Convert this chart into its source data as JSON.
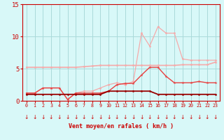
{
  "x": [
    0,
    1,
    2,
    3,
    4,
    5,
    6,
    7,
    8,
    9,
    10,
    11,
    12,
    13,
    14,
    15,
    16,
    17,
    18,
    19,
    20,
    21,
    22,
    23
  ],
  "line_rafales": [
    1.2,
    1.2,
    2.0,
    2.0,
    2.0,
    0.2,
    1.2,
    1.5,
    1.5,
    2.0,
    2.5,
    2.8,
    2.5,
    3.0,
    10.5,
    8.5,
    11.5,
    10.5,
    10.5,
    6.5,
    6.3,
    6.3,
    6.3,
    6.3
  ],
  "line_moy_light": [
    5.2,
    5.2,
    5.2,
    5.2,
    5.2,
    5.2,
    5.2,
    5.3,
    5.4,
    5.5,
    5.5,
    5.5,
    5.5,
    5.5,
    5.5,
    5.5,
    5.5,
    5.5,
    5.5,
    5.6,
    5.6,
    5.6,
    5.6,
    6.0
  ],
  "line_moy_dark": [
    1.2,
    1.2,
    2.0,
    2.0,
    2.0,
    0.2,
    1.2,
    1.2,
    1.2,
    1.2,
    1.5,
    2.5,
    2.7,
    2.7,
    4.0,
    5.2,
    5.2,
    3.8,
    2.8,
    2.8,
    2.8,
    3.0,
    2.8,
    2.8
  ],
  "line_base": [
    1.0,
    1.0,
    1.0,
    1.0,
    1.0,
    1.0,
    1.0,
    1.0,
    1.0,
    1.0,
    1.5,
    1.5,
    1.5,
    1.5,
    1.5,
    1.5,
    1.0,
    1.0,
    1.0,
    1.0,
    1.0,
    1.0,
    1.0,
    1.0
  ],
  "color_light_pink": "#f5aaaa",
  "color_medium_red": "#e84040",
  "color_dark_red": "#990000",
  "bg_color": "#d8f8f8",
  "grid_color": "#aadada",
  "spine_color": "#cc0000",
  "tick_color": "#cc0000",
  "label_color": "#cc0000",
  "ylim": [
    0,
    15
  ],
  "yticks": [
    0,
    5,
    10,
    15
  ],
  "xlabel": "Vent moyen/en rafales ( km/h )"
}
